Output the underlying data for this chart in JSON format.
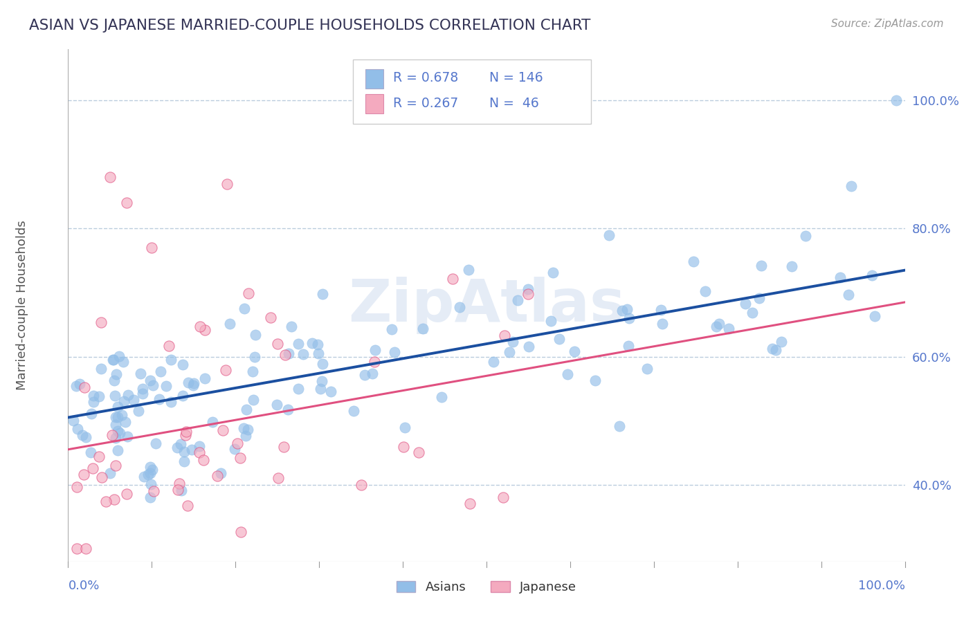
{
  "title": "ASIAN VS JAPANESE MARRIED-COUPLE HOUSEHOLDS CORRELATION CHART",
  "source": "Source: ZipAtlas.com",
  "ylabel": "Married-couple Households",
  "ytick_labels": [
    "40.0%",
    "60.0%",
    "80.0%",
    "100.0%"
  ],
  "ytick_values": [
    0.4,
    0.6,
    0.8,
    1.0
  ],
  "xmin": 0.0,
  "xmax": 1.0,
  "ymin": 0.28,
  "ymax": 1.08,
  "blue_color": "#92BEE8",
  "blue_line_color": "#1B4FA0",
  "pink_color": "#F4AABF",
  "pink_line_color": "#E05080",
  "legend_R_blue": "R = 0.678",
  "legend_N_blue": "N = 146",
  "legend_R_pink": "R = 0.267",
  "legend_N_pink": "N =  46",
  "title_color": "#333355",
  "axis_label_color": "#5577CC",
  "grid_color": "#BBCCDD",
  "background_color": "#ffffff",
  "blue_trend_x": [
    0.0,
    1.0
  ],
  "blue_trend_y": [
    0.505,
    0.735
  ],
  "pink_trend_x": [
    0.0,
    1.0
  ],
  "pink_trend_y": [
    0.455,
    0.685
  ],
  "watermark": "ZipAtlas",
  "watermark_color": "#CCDAEE",
  "scatter_dot_size": 120,
  "scatter_alpha": 0.65
}
